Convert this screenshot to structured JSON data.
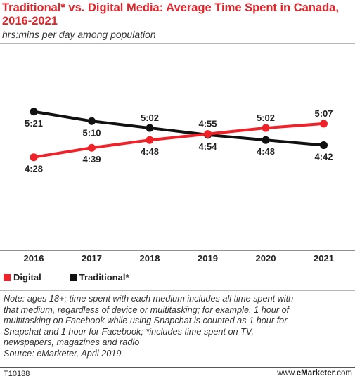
{
  "header": {
    "title": "Traditional* vs. Digital Media: Average Time Spent in Canada, 2016-2021",
    "subtitle": "hrs:mins per day among population"
  },
  "colors": {
    "digital": "#ee2228",
    "traditional": "#111111"
  },
  "chart_data": {
    "type": "line",
    "title": "Traditional* vs. Digital Media: Average Time Spent in Canada, 2016-2021",
    "subtitle": "hrs:mins per day among population",
    "categories": [
      "2016",
      "2017",
      "2018",
      "2019",
      "2020",
      "2021"
    ],
    "series": [
      {
        "name": "Digital",
        "color": "#ee2228",
        "values": [
          268,
          279,
          288,
          295,
          302,
          307
        ],
        "labels": [
          "4:28",
          "4:39",
          "4:48",
          "4:55",
          "5:02",
          "5:07"
        ],
        "label_pos": [
          "below",
          "below",
          "below",
          "above",
          "above",
          "above"
        ]
      },
      {
        "name": "Traditional*",
        "color": "#111111",
        "values": [
          321,
          310,
          302,
          294,
          288,
          282
        ],
        "labels": [
          "5:21",
          "5:10",
          "5:02",
          "4:54",
          "4:48",
          "4:42"
        ],
        "label_pos": [
          "below",
          "below",
          "above",
          "below",
          "below",
          "below"
        ]
      }
    ],
    "ylim": [
      160,
      400
    ],
    "grid": false,
    "legend": "bottom-left"
  },
  "legend": {
    "digital_label": "Digital",
    "traditional_label": "Traditional*"
  },
  "notes": {
    "lines": [
      "Note: ages 18+; time spent with each medium includes all time spent with",
      "that medium, regardless of device or multitasking; for example, 1 hour of",
      "multitasking on Facebook while using Snapchat is counted as 1 hour for",
      "Snapchat and 1 hour for Facebook; *includes time spent on TV,",
      "newspapers, magazines and radio"
    ],
    "source": "Source: eMarketer, April 2019"
  },
  "footer": {
    "id": "T10188",
    "site_prefix": "www.",
    "site_brand": "eMarketer",
    "site_suffix": ".com"
  }
}
